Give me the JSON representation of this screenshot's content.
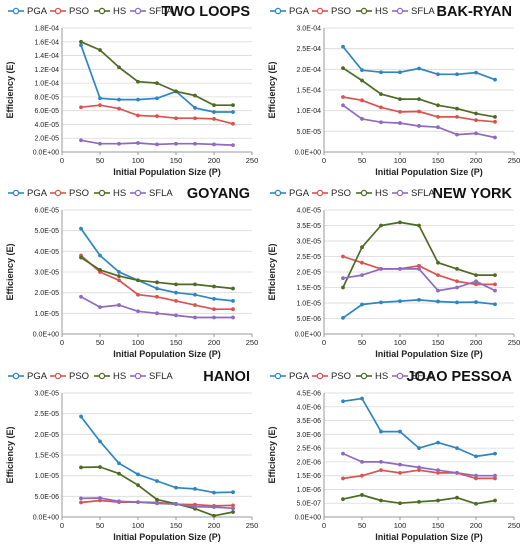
{
  "figure": {
    "xlabel": "Initial  Population Size (P)",
    "ylabel": "Efficiency (E)"
  },
  "series_colors": {
    "PGA": "#2e86c1",
    "PSO": "#d9534f",
    "HS": "#4e6a24",
    "SFLA": "#8e6bbf"
  },
  "chart_data": [
    {
      "type": "line",
      "title": "TWO LOOPS",
      "xlim": [
        0,
        250
      ],
      "xticks": [
        0,
        50,
        100,
        150,
        200,
        250
      ],
      "ylim": [
        0,
        0.00018
      ],
      "yticks": [
        0,
        2e-05,
        4e-05,
        6e-05,
        8e-05,
        0.0001,
        0.00012,
        0.00014,
        0.00016,
        0.00018
      ],
      "ytick_labels": [
        "0.0E+00",
        "2.0E-05",
        "4.0E-05",
        "6.0E-05",
        "8.0E-05",
        "1.0E-04",
        "1.2E-04",
        "1.4E-04",
        "1.6E-04",
        "1.8E-04"
      ],
      "legend": "top-left",
      "x": [
        25,
        50,
        75,
        100,
        125,
        150,
        175,
        200,
        225
      ],
      "series": [
        {
          "name": "PGA",
          "values": [
            0.000155,
            7.8e-05,
            7.6e-05,
            7.6e-05,
            7.8e-05,
            8.8e-05,
            6.4e-05,
            5.8e-05,
            5.8e-05
          ]
        },
        {
          "name": "PSO",
          "values": [
            6.5e-05,
            6.8e-05,
            6.3e-05,
            5.3e-05,
            5.2e-05,
            4.9e-05,
            4.9e-05,
            4.8e-05,
            4.1e-05
          ]
        },
        {
          "name": "HS",
          "values": [
            0.00016,
            0.000148,
            0.000123,
            0.000102,
            0.0001,
            8.8e-05,
            8.2e-05,
            6.8e-05,
            6.8e-05
          ]
        },
        {
          "name": "SFLA",
          "values": [
            1.7e-05,
            1.2e-05,
            1.2e-05,
            1.3e-05,
            1.1e-05,
            1.2e-05,
            1.2e-05,
            1.1e-05,
            1e-05
          ]
        }
      ]
    },
    {
      "type": "line",
      "title": "BAK-RYAN",
      "xlim": [
        0,
        250
      ],
      "xticks": [
        0,
        50,
        100,
        150,
        200,
        250
      ],
      "ylim": [
        0,
        0.0003
      ],
      "yticks": [
        0,
        5e-05,
        0.0001,
        0.00015,
        0.0002,
        0.00025,
        0.0003
      ],
      "ytick_labels": [
        "0.0E+00",
        "5.0E-05",
        "1.0E-04",
        "1.5E-04",
        "2.0E-04",
        "2.5E-04",
        "3.0E-04"
      ],
      "legend": "top-left",
      "x": [
        25,
        50,
        75,
        100,
        125,
        150,
        175,
        200,
        225
      ],
      "series": [
        {
          "name": "PGA",
          "values": [
            0.000255,
            0.000198,
            0.000193,
            0.000193,
            0.000202,
            0.000188,
            0.000188,
            0.000192,
            0.000175
          ]
        },
        {
          "name": "PSO",
          "values": [
            0.000133,
            0.000125,
            0.000108,
            9.7e-05,
            9.8e-05,
            8.5e-05,
            8.5e-05,
            7.7e-05,
            7.3e-05
          ]
        },
        {
          "name": "HS",
          "values": [
            0.000203,
            0.000173,
            0.00014,
            0.000128,
            0.000128,
            0.000113,
            0.000105,
            9.3e-05,
            8.5e-05
          ]
        },
        {
          "name": "SFLA",
          "values": [
            0.000113,
            8e-05,
            7.2e-05,
            7e-05,
            6.3e-05,
            6e-05,
            4.2e-05,
            4.5e-05,
            3.5e-05
          ]
        }
      ]
    },
    {
      "type": "line",
      "title": "GOYANG",
      "xlim": [
        0,
        250
      ],
      "xticks": [
        0,
        50,
        100,
        150,
        200,
        250
      ],
      "ylim": [
        0,
        6e-05
      ],
      "yticks": [
        0,
        1e-05,
        2e-05,
        3e-05,
        4e-05,
        5e-05,
        6e-05
      ],
      "ytick_labels": [
        "0.0E+00",
        "1.0E-05",
        "2.0E-05",
        "3.0E-05",
        "4.0E-05",
        "5.0E-05",
        "6.0E-05"
      ],
      "legend": "top-left",
      "x": [
        25,
        50,
        75,
        100,
        125,
        150,
        175,
        200,
        225
      ],
      "series": [
        {
          "name": "PGA",
          "values": [
            5.1e-05,
            3.8e-05,
            3e-05,
            2.6e-05,
            2.2e-05,
            2e-05,
            1.9e-05,
            1.7e-05,
            1.6e-05
          ]
        },
        {
          "name": "PSO",
          "values": [
            3.8e-05,
            3e-05,
            2.6e-05,
            1.9e-05,
            1.8e-05,
            1.6e-05,
            1.4e-05,
            1.2e-05,
            1.2e-05
          ]
        },
        {
          "name": "HS",
          "values": [
            3.7e-05,
            3.1e-05,
            2.8e-05,
            2.6e-05,
            2.5e-05,
            2.4e-05,
            2.4e-05,
            2.3e-05,
            2.2e-05
          ]
        },
        {
          "name": "SFLA",
          "values": [
            1.8e-05,
            1.3e-05,
            1.4e-05,
            1.1e-05,
            1e-05,
            9e-06,
            8e-06,
            8e-06,
            8e-06
          ]
        }
      ]
    },
    {
      "type": "line",
      "title": "NEW YORK",
      "xlim": [
        0,
        250
      ],
      "xticks": [
        0,
        50,
        100,
        150,
        200,
        250
      ],
      "ylim": [
        0,
        4e-05
      ],
      "yticks": [
        0,
        5e-06,
        1e-05,
        1.5e-05,
        2e-05,
        2.5e-05,
        3e-05,
        3.5e-05,
        4e-05
      ],
      "ytick_labels": [
        "0.0E+00",
        "5.0E-06",
        "1.0E-05",
        "1.5E-05",
        "2.0E-05",
        "2.5E-05",
        "3.0E-05",
        "3.5E-05",
        "4.0E-05"
      ],
      "legend": "top-left",
      "x": [
        25,
        50,
        75,
        100,
        125,
        150,
        175,
        200,
        225
      ],
      "series": [
        {
          "name": "PGA",
          "values": [
            5.2e-06,
            9.5e-06,
            1.02e-05,
            1.06e-05,
            1.1e-05,
            1.05e-05,
            1.02e-05,
            1.03e-05,
            9.6e-06
          ]
        },
        {
          "name": "PSO",
          "values": [
            2.5e-05,
            2.3e-05,
            2.1e-05,
            2.1e-05,
            2.2e-05,
            1.9e-05,
            1.7e-05,
            1.6e-05,
            1.6e-05
          ]
        },
        {
          "name": "HS",
          "values": [
            1.5e-05,
            2.8e-05,
            3.5e-05,
            3.6e-05,
            3.5e-05,
            2.3e-05,
            2.1e-05,
            1.9e-05,
            1.9e-05
          ]
        },
        {
          "name": "SFLA",
          "values": [
            1.8e-05,
            1.9e-05,
            2.1e-05,
            2.1e-05,
            2.1e-05,
            1.4e-05,
            1.5e-05,
            1.7e-05,
            1.4e-05
          ]
        }
      ]
    },
    {
      "type": "line",
      "title": "HANOI",
      "xlim": [
        0,
        250
      ],
      "xticks": [
        0,
        50,
        100,
        150,
        200,
        250
      ],
      "ylim": [
        0,
        3e-05
      ],
      "yticks": [
        0,
        5e-06,
        1e-05,
        1.5e-05,
        2e-05,
        2.5e-05,
        3e-05
      ],
      "ytick_labels": [
        "0.0E+00",
        "5.0E-06",
        "1.0E-05",
        "1.5E-05",
        "2.0E-05",
        "2.5E-05",
        "3.0E-05"
      ],
      "legend": "top-left",
      "x": [
        25,
        50,
        75,
        100,
        125,
        150,
        175,
        200,
        225
      ],
      "series": [
        {
          "name": "PGA",
          "values": [
            2.43e-05,
            1.83e-05,
            1.3e-05,
            1.03e-05,
            8.7e-06,
            7.1e-06,
            6.8e-06,
            5.9e-06,
            6e-06
          ]
        },
        {
          "name": "PSO",
          "values": [
            3.5e-06,
            4e-06,
            3.6e-06,
            3.6e-06,
            3.5e-06,
            3.1e-06,
            3e-06,
            2.7e-06,
            2.8e-06
          ]
        },
        {
          "name": "HS",
          "values": [
            1.2e-05,
            1.21e-05,
            1.05e-05,
            7.7e-06,
            4.2e-06,
            3.2e-06,
            2e-06,
            3e-07,
            1.2e-06
          ]
        },
        {
          "name": "SFLA",
          "values": [
            4.5e-06,
            4.6e-06,
            3.8e-06,
            3.6e-06,
            3.3e-06,
            3.1e-06,
            2.5e-06,
            2.4e-06,
            2.1e-06
          ]
        }
      ]
    },
    {
      "type": "line",
      "title": "JOAO PESSOA",
      "xlim": [
        0,
        250
      ],
      "xticks": [
        0,
        50,
        100,
        150,
        200,
        250
      ],
      "ylim": [
        0,
        4.5e-06
      ],
      "yticks": [
        0,
        5e-07,
        1e-06,
        1.5e-06,
        2e-06,
        2.5e-06,
        3e-06,
        3.5e-06,
        4e-06,
        4.5e-06
      ],
      "ytick_labels": [
        "0.0E+00",
        "5.0E-07",
        "1.0E-06",
        "1.5E-06",
        "2.0E-06",
        "2.5E-06",
        "3.0E-06",
        "3.5E-06",
        "4.0E-06",
        "4.5E-06"
      ],
      "legend": "top-left",
      "x": [
        25,
        50,
        75,
        100,
        125,
        150,
        175,
        200,
        225
      ],
      "series": [
        {
          "name": "PGA",
          "values": [
            4.2e-06,
            4.3e-06,
            3.1e-06,
            3.1e-06,
            2.5e-06,
            2.7e-06,
            2.5e-06,
            2.2e-06,
            2.3e-06
          ]
        },
        {
          "name": "PSO",
          "values": [
            1.4e-06,
            1.5e-06,
            1.7e-06,
            1.6e-06,
            1.7e-06,
            1.6e-06,
            1.6e-06,
            1.4e-06,
            1.4e-06
          ]
        },
        {
          "name": "HS",
          "values": [
            6.5e-07,
            8e-07,
            6e-07,
            5e-07,
            5.5e-07,
            6e-07,
            7e-07,
            4.8e-07,
            6e-07
          ]
        },
        {
          "name": "SFLA",
          "values": [
            2.3e-06,
            2e-06,
            2e-06,
            1.9e-06,
            1.8e-06,
            1.7e-06,
            1.6e-06,
            1.5e-06,
            1.5e-06
          ]
        }
      ]
    }
  ]
}
